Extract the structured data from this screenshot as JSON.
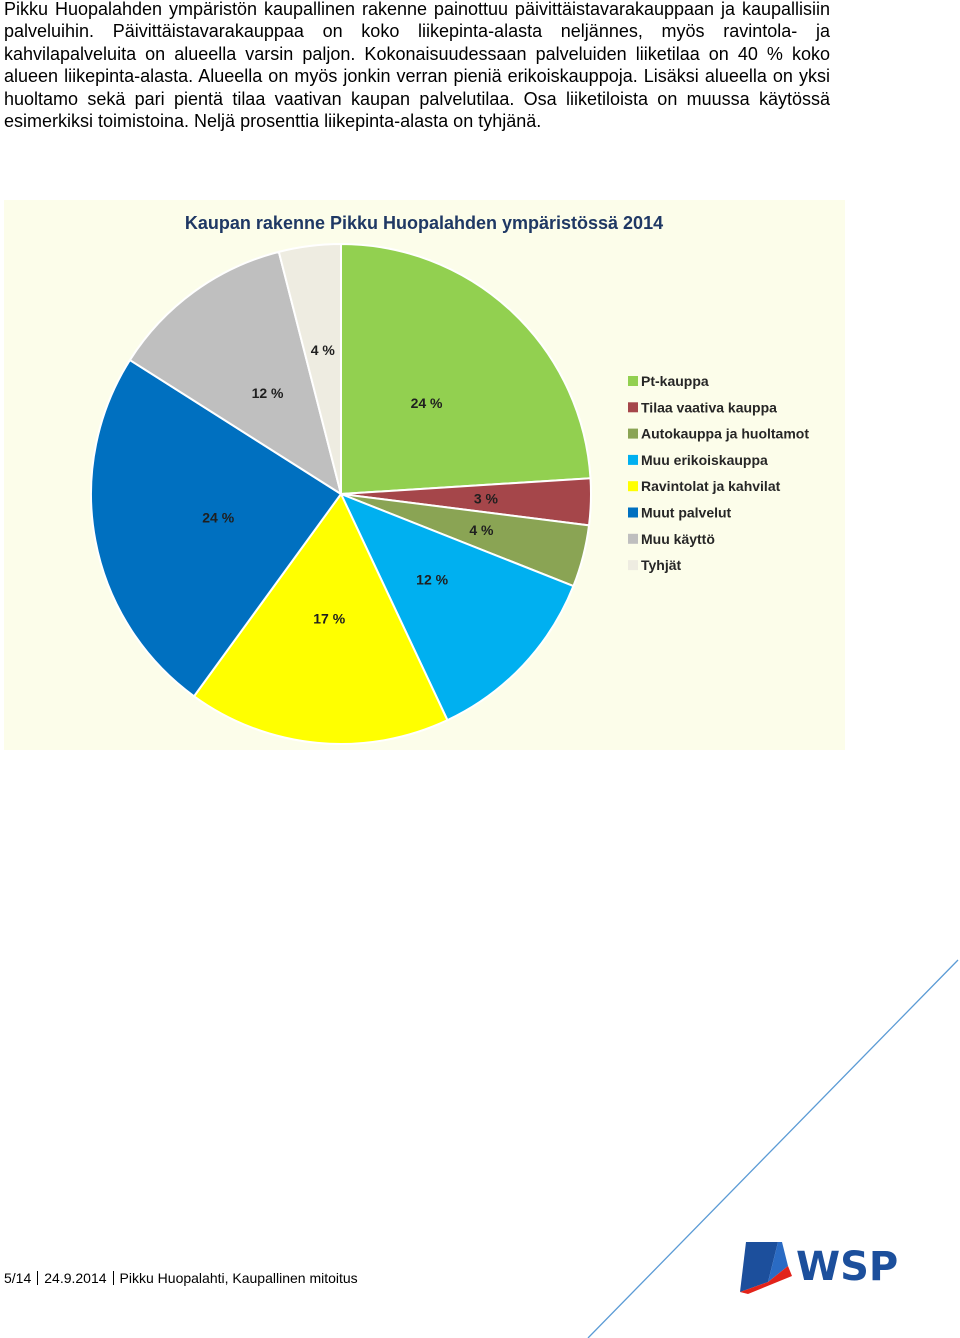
{
  "document": {
    "paragraph": "Pikku Huopalahden ympäristön kaupallinen rakenne painottuu päivittäistavarakauppaan ja kaupallisiin palveluihin. Päivittäistavarakauppaa on koko liikepinta-alasta neljännes, myös ravintola- ja kahvilapalveluita on alueella varsin paljon. Kokonaisuudessaan palveluiden liiketilaa on 40 % koko alueen liikepinta-alasta. Alueella on myös jonkin verran pieniä erikoiskauppoja. Lisäksi alueella on yksi huoltamo sekä pari pientä tilaa vaativan kaupan palvelutilaa. Osa liiketiloista on muussa käytössä esimerkiksi toimistoina. Neljä prosenttia liikepinta-alasta on tyhjänä."
  },
  "chart_data": {
    "type": "pie",
    "title": "Kaupan rakenne Pikku Huopalahden ympäristössä 2014",
    "legend_position": "right",
    "start": "12 o'clock, clockwise",
    "slices": [
      {
        "label": "Pt-kauppa",
        "value": 24,
        "value_label": "24 %",
        "color": "#92d050"
      },
      {
        "label": "Tilaa vaativa kauppa",
        "value": 3,
        "value_label": "3 %",
        "color": "#a5464a"
      },
      {
        "label": "Autokauppa ja huoltamot",
        "value": 4,
        "value_label": "4 %",
        "color": "#8aa454"
      },
      {
        "label": "Muu erikoiskauppa",
        "value": 12,
        "value_label": "12 %",
        "color": "#00b0f0"
      },
      {
        "label": "Ravintolat ja kahvilat",
        "value": 17,
        "value_label": "17 %",
        "color": "#ffff00"
      },
      {
        "label": "Muut palvelut",
        "value": 24,
        "value_label": "24 %",
        "color": "#0070c0"
      },
      {
        "label": "Muu käyttö",
        "value": 12,
        "value_label": "12 %",
        "color": "#bfbfbf"
      },
      {
        "label": "Tyhjät",
        "value": 4,
        "value_label": "4 %",
        "color": "#eeece1"
      }
    ]
  },
  "footer": {
    "page": "5/14",
    "date": "24.9.2014",
    "title": "Pikku Huopalahti, Kaupallinen mitoitus"
  },
  "logo": {
    "text": "WSP",
    "color": "#1c4f9c",
    "accent": "#e2231a"
  }
}
